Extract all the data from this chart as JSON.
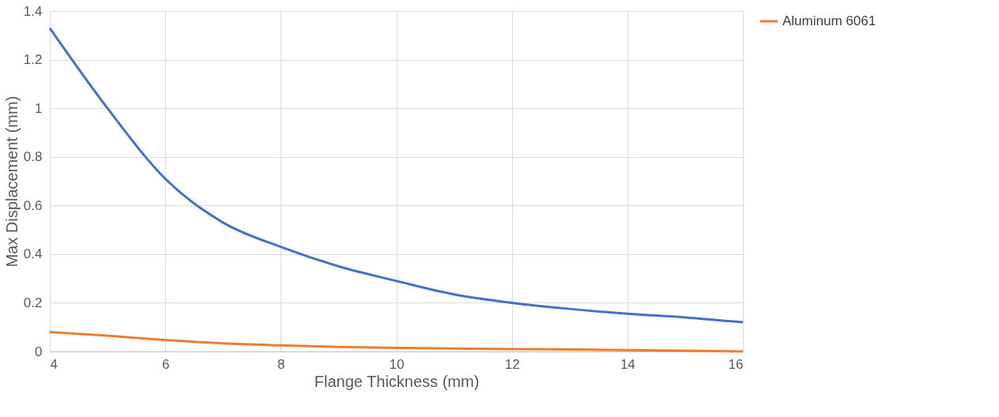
{
  "chart_data": {
    "type": "line",
    "xlabel": "Flange Thickness (mm)",
    "ylabel": "Max Displacement (mm)",
    "x": [
      4,
      5,
      6,
      7,
      8,
      9,
      10,
      11,
      12,
      13,
      14,
      15,
      16
    ],
    "series": [
      {
        "color": "#4472c4",
        "values": [
          1.33,
          1.0,
          0.71,
          0.53,
          0.43,
          0.35,
          0.29,
          0.235,
          0.2,
          0.175,
          0.155,
          0.14,
          0.12
        ]
      },
      {
        "name": "Aluminum 6061",
        "color": "#ed7d31",
        "values": [
          0.08,
          0.065,
          0.047,
          0.033,
          0.025,
          0.019,
          0.015,
          0.012,
          0.01,
          0.008,
          0.006,
          0.003,
          0.0
        ]
      }
    ],
    "xlim": [
      4,
      16
    ],
    "xticks": [
      4,
      6,
      8,
      10,
      12,
      14,
      16
    ],
    "ylim": [
      0,
      1.4
    ],
    "yticks": [
      0,
      0.2,
      0.4,
      0.6,
      0.8,
      1,
      1.2,
      1.4
    ],
    "grid": true,
    "legend": "right",
    "marker": "none",
    "line_style": "solid"
  }
}
